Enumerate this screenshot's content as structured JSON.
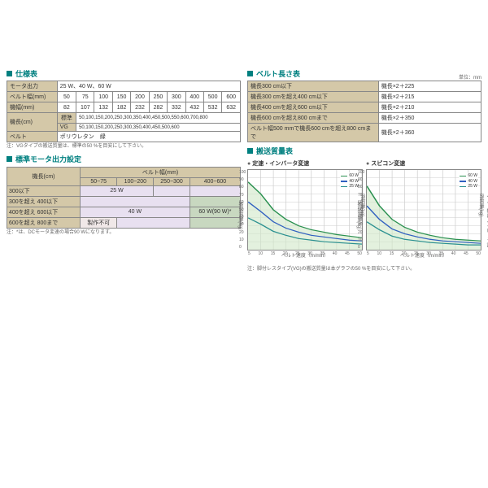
{
  "spec": {
    "title": "仕様表",
    "rows": {
      "motor_out": {
        "label": "モータ出力",
        "value": "25 W、40 W、60 W"
      },
      "belt_w": {
        "label": "ベルト幅(mm)",
        "cells": [
          "50",
          "75",
          "100",
          "150",
          "200",
          "250",
          "300",
          "400",
          "500",
          "600"
        ]
      },
      "mach_w": {
        "label": "機幅(mm)",
        "cells": [
          "82",
          "107",
          "132",
          "182",
          "232",
          "282",
          "332",
          "432",
          "532",
          "632"
        ]
      },
      "mach_len_std": {
        "group": "機長(cm)",
        "sub": "標準",
        "value": "50,100,150,200,250,300,350,400,450,500,550,600,700,800"
      },
      "mach_len_vg": {
        "sub": "VG",
        "value": "50,100,150,200,250,300,350,400,450,500,600"
      },
      "belt": {
        "label": "ベルト",
        "value": "ポリウレタン　緑"
      }
    },
    "note": "注：VGタイプの搬送質量は、標準の50 %を目安にして下さい。"
  },
  "motor": {
    "title": "標準モータ出力設定",
    "col_header": "ベルト幅(mm)",
    "row_header": "機長(cm)",
    "cols": [
      "50~75",
      "100~200",
      "250~300",
      "400~600"
    ],
    "rows": [
      {
        "label": "300以下",
        "c": [
          {
            "v": "25 W",
            "cls": "m-25",
            "span": 2
          },
          null,
          {
            "v": "",
            "cls": "m-40",
            "span": 1
          },
          {
            "v": "",
            "cls": "m-40",
            "span": 1
          }
        ]
      },
      {
        "label": "300を超え 400以下",
        "c": [
          {
            "v": "",
            "cls": "m-40",
            "span": 3
          },
          null,
          null,
          {
            "v": "",
            "cls": "m-60",
            "span": 1
          }
        ]
      },
      {
        "label": "400を超え 600以下",
        "c": [
          {
            "v": "40 W",
            "cls": "m-40",
            "span": 3
          },
          null,
          null,
          {
            "v": "60 W(90 W)*",
            "cls": "m-60",
            "span": 1
          }
        ]
      },
      {
        "label": "600を超え 800まで",
        "c": [
          {
            "v": "製作不可",
            "cls": "m-ng",
            "span": 1
          },
          {
            "v": "",
            "cls": "m-40",
            "span": 2
          },
          null,
          {
            "v": "",
            "cls": "m-60",
            "span": 1
          }
        ]
      }
    ],
    "note": "注：*は、DCモータ変速の場合90 Wになります。"
  },
  "belt_len": {
    "title": "ベルト長さ表",
    "unit": "単位：mm",
    "rows": [
      {
        "l": "機長300 cm以下",
        "r": "機長×2＋225"
      },
      {
        "l": "機長300 cmを超え400 cm以下",
        "r": "機長×2＋215"
      },
      {
        "l": "機長400 cmを超え600 cm以下",
        "r": "機長×2＋210"
      },
      {
        "l": "機長600 cmを超え800 cmまで",
        "r": "機長×2＋350"
      },
      {
        "l": "ベルト幅500 mmで機長600 cmを超え800 cmまで",
        "r": "機長×2＋360"
      }
    ]
  },
  "transport": {
    "title": "搬送質量表",
    "chart1": {
      "title": "定速・インバータ変速"
    },
    "chart2": {
      "title": "スピコン変速"
    },
    "xlabel": "ベルト速度（m/min）",
    "ylabel": "搬送質量(kg)",
    "ylabel2": "ベルト幅によるローラ許容質量(kg)",
    "xlim": [
      5,
      50
    ],
    "ylim": [
      0,
      100
    ],
    "xticks": [
      "5",
      "10",
      "15",
      "20",
      "25",
      "30",
      "35",
      "40",
      "45",
      "50"
    ],
    "yticks": [
      "100",
      "90",
      "80",
      "70",
      "60",
      "50",
      "40",
      "30",
      "20",
      "10",
      "0"
    ],
    "legend": [
      {
        "label": "60 W",
        "color": "#2a9050"
      },
      {
        "label": "40 W",
        "color": "#3060c0"
      },
      {
        "label": "25 W",
        "color": "#2a9090"
      }
    ],
    "series1": {
      "60W": {
        "color": "#2a9050",
        "pts": [
          [
            5,
            85
          ],
          [
            10,
            70
          ],
          [
            15,
            50
          ],
          [
            20,
            38
          ],
          [
            25,
            30
          ],
          [
            30,
            25
          ],
          [
            35,
            22
          ],
          [
            40,
            19
          ],
          [
            45,
            17
          ],
          [
            50,
            15
          ]
        ]
      },
      "40W": {
        "color": "#3060c0",
        "pts": [
          [
            5,
            60
          ],
          [
            10,
            48
          ],
          [
            15,
            35
          ],
          [
            20,
            27
          ],
          [
            25,
            22
          ],
          [
            30,
            18
          ],
          [
            35,
            16
          ],
          [
            40,
            14
          ],
          [
            45,
            12
          ],
          [
            50,
            11
          ]
        ]
      },
      "25W": {
        "color": "#2a9090",
        "pts": [
          [
            5,
            40
          ],
          [
            10,
            32
          ],
          [
            15,
            23
          ],
          [
            20,
            18
          ],
          [
            25,
            14
          ],
          [
            30,
            12
          ],
          [
            35,
            10
          ],
          [
            40,
            9
          ],
          [
            45,
            8
          ],
          [
            50,
            7
          ]
        ]
      },
      "fill": "#d0e8c8"
    },
    "series2": {
      "60W": {
        "color": "#2a9050",
        "pts": [
          [
            5,
            80
          ],
          [
            10,
            55
          ],
          [
            15,
            38
          ],
          [
            20,
            28
          ],
          [
            25,
            22
          ],
          [
            30,
            18
          ],
          [
            35,
            15
          ],
          [
            40,
            13
          ],
          [
            45,
            12
          ],
          [
            50,
            11
          ]
        ]
      },
      "40W": {
        "color": "#3060c0",
        "pts": [
          [
            5,
            55
          ],
          [
            10,
            38
          ],
          [
            15,
            26
          ],
          [
            20,
            20
          ],
          [
            25,
            16
          ],
          [
            30,
            13
          ],
          [
            35,
            11
          ],
          [
            40,
            10
          ],
          [
            45,
            9
          ],
          [
            50,
            8
          ]
        ]
      },
      "25W": {
        "color": "#2a9090",
        "pts": [
          [
            5,
            35
          ],
          [
            10,
            25
          ],
          [
            15,
            17
          ],
          [
            20,
            13
          ],
          [
            25,
            11
          ],
          [
            30,
            9
          ],
          [
            35,
            8
          ],
          [
            40,
            7
          ],
          [
            45,
            6
          ],
          [
            50,
            6
          ]
        ]
      },
      "fill": "#d0e8c8"
    },
    "note": "注：脚付レスタイプ(VG)の搬送質量は本グラフの50 %を目安にして下さい。"
  }
}
